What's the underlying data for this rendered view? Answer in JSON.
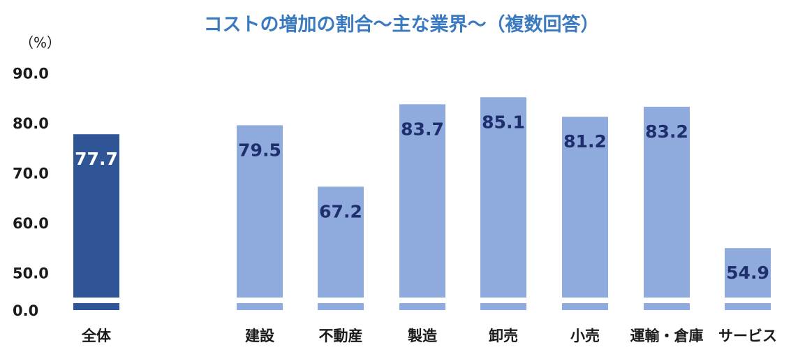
{
  "chart_data": {
    "type": "bar",
    "title": "コストの増加の割合～主な業界～（複数回答）",
    "ylabel": "（%）",
    "ylim": [
      0,
      90
    ],
    "axis_break": true,
    "yticks": [
      "0.0",
      "50.0",
      "60.0",
      "70.0",
      "80.0",
      "90.0"
    ],
    "categories": [
      "全体",
      "建設",
      "不動産",
      "製造",
      "卸売",
      "小売",
      "運輸・倉庫",
      "サービス"
    ],
    "values": [
      77.7,
      79.5,
      67.2,
      83.7,
      85.1,
      81.2,
      83.2,
      54.9
    ],
    "value_labels": [
      "77.7",
      "79.5",
      "67.2",
      "83.7",
      "85.1",
      "81.2",
      "83.2",
      "54.9"
    ],
    "grid": false,
    "legend": "none"
  },
  "colors": {
    "title": "#3a7ac0",
    "highlight_bar": "#2f5597",
    "bar": "#8faadc",
    "highlight_label": "#ffffff",
    "label": "#1f2f6e"
  }
}
